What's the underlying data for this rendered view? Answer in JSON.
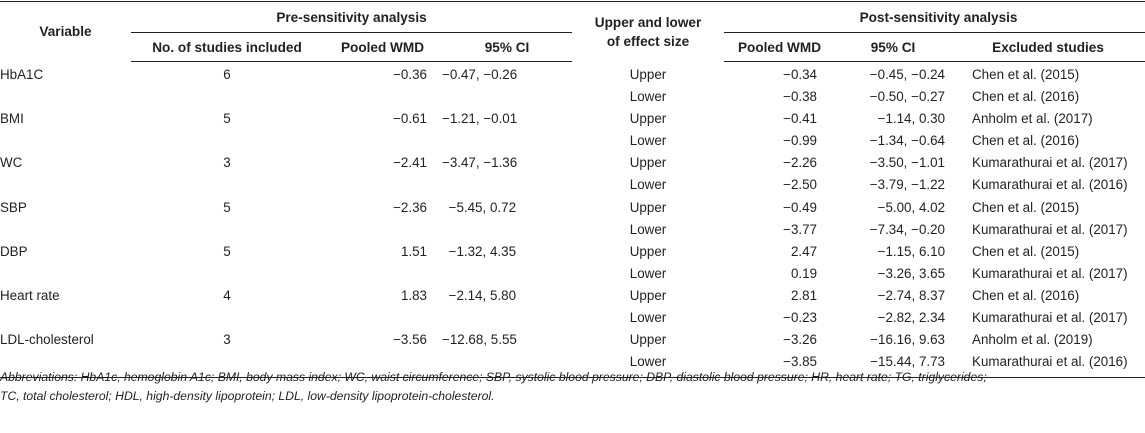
{
  "table": {
    "headers": {
      "variable": "Variable",
      "pre_group": "Pre-sensitivity analysis",
      "bound_line1": "Upper and lower",
      "bound_line2": "of effect size",
      "post_group": "Post-sensitivity analysis",
      "pre_studies": "No. of studies included",
      "pre_wmd": "Pooled WMD",
      "pre_ci": "95% CI",
      "post_wmd": "Pooled WMD",
      "post_ci": "95% CI",
      "post_excluded": "Excluded studies"
    },
    "rows": [
      {
        "variable": "HbA1C",
        "studies": "6",
        "pre_wmd": "−0.36",
        "pre_ci": "−0.47, −0.26",
        "upper": {
          "label": "Upper",
          "wmd": "−0.34",
          "ci": "−0.45, −0.24",
          "excluded": "Chen et al. (2015)"
        },
        "lower": {
          "label": "Lower",
          "wmd": "−0.38",
          "ci": "−0.50, −0.27",
          "excluded": "Chen et al. (2016)"
        }
      },
      {
        "variable": "BMI",
        "studies": "5",
        "pre_wmd": "−0.61",
        "pre_ci": "−1.21, −0.01",
        "upper": {
          "label": "Upper",
          "wmd": "−0.41",
          "ci": "−1.14, 0.30",
          "excluded": "Anholm et al. (2017)"
        },
        "lower": {
          "label": "Lower",
          "wmd": "−0.99",
          "ci": "−1.34, −0.64",
          "excluded": "Chen et al. (2016)"
        }
      },
      {
        "variable": "WC",
        "studies": "3",
        "pre_wmd": "−2.41",
        "pre_ci": "−3.47, −1.36",
        "upper": {
          "label": "Upper",
          "wmd": "−2.26",
          "ci": "−3.50, −1.01",
          "excluded": "Kumarathurai et al. (2017)"
        },
        "lower": {
          "label": "Lower",
          "wmd": "−2.50",
          "ci": "−3.79, −1.22",
          "excluded": "Kumarathurai et al. (2016)"
        }
      },
      {
        "variable": "SBP",
        "studies": "5",
        "pre_wmd": "−2.36",
        "pre_ci": "−5.45, 0.72",
        "upper": {
          "label": "Upper",
          "wmd": "−0.49",
          "ci": "−5.00, 4.02",
          "excluded": "Chen et al. (2015)"
        },
        "lower": {
          "label": "Lower",
          "wmd": "−3.77",
          "ci": "−7.34, −0.20",
          "excluded": "Kumarathurai et al. (2017)"
        }
      },
      {
        "variable": "DBP",
        "studies": "5",
        "pre_wmd": "1.51",
        "pre_ci": "−1.32, 4.35",
        "upper": {
          "label": "Upper",
          "wmd": "2.47",
          "ci": "−1.15, 6.10",
          "excluded": "Chen et al. (2015)"
        },
        "lower": {
          "label": "Lower",
          "wmd": "0.19",
          "ci": "−3.26, 3.65",
          "excluded": "Kumarathurai et al. (2017)"
        }
      },
      {
        "variable": "Heart rate",
        "studies": "4",
        "pre_wmd": "1.83",
        "pre_ci": "−2.14, 5.80",
        "upper": {
          "label": "Upper",
          "wmd": "2.81",
          "ci": "−2.74, 8.37",
          "excluded": "Chen et al. (2016)"
        },
        "lower": {
          "label": "Lower",
          "wmd": "−0.23",
          "ci": "−2.82, 2.34",
          "excluded": "Kumarathurai et al. (2017)"
        }
      },
      {
        "variable": "LDL-cholesterol",
        "studies": "3",
        "pre_wmd": "−3.56",
        "pre_ci": "−12.68, 5.55",
        "upper": {
          "label": "Upper",
          "wmd": "−3.26",
          "ci": "−16.16, 9.63",
          "excluded": "Anholm et al. (2019)"
        },
        "lower": {
          "label": "Lower",
          "wmd": "−3.85",
          "ci": "−15.44, 7.73",
          "excluded": "Kumarathurai et al. (2016)"
        }
      }
    ]
  },
  "footnote": {
    "line1": "Abbreviations: HbA1c, hemoglobin A1c; BMI, body mass index; WC, waist circumference; SBP, systolic blood pressure; DBP, diastolic blood pressure; HR, heart rate; TG, triglycerides;",
    "line2": "TC, total cholesterol; HDL, high-density lipoprotein; LDL, low-density lipoprotein-cholesterol."
  }
}
